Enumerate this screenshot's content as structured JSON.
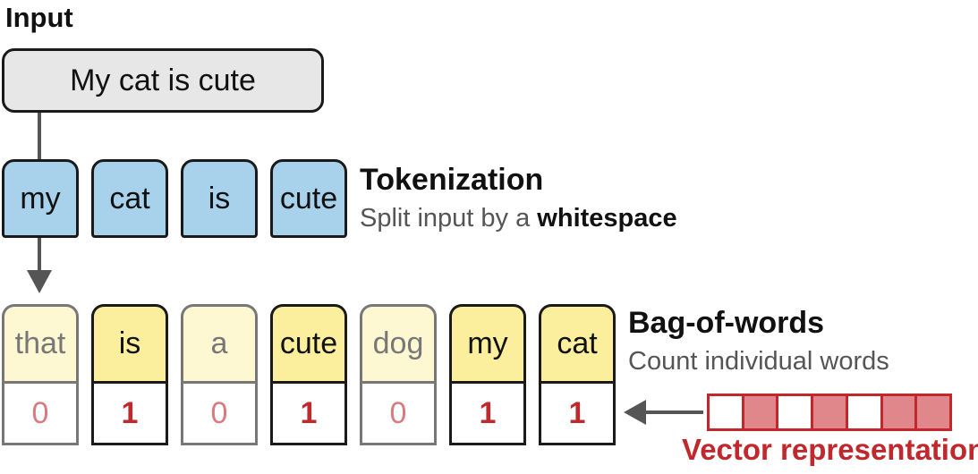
{
  "input": {
    "label": "Input",
    "sentence": "My cat is cute"
  },
  "tokenization": {
    "tokens": [
      "my",
      "cat",
      "is",
      "cute"
    ],
    "title": "Tokenization",
    "description_prefix": "Split input by a ",
    "description_emphasis": "whitespace"
  },
  "bag_of_words": {
    "title": "Bag-of-words",
    "description": "Count individual words",
    "vocabulary": [
      {
        "word": "that",
        "count": "0",
        "present": false
      },
      {
        "word": "is",
        "count": "1",
        "present": true
      },
      {
        "word": "a",
        "count": "0",
        "present": false
      },
      {
        "word": "cute",
        "count": "1",
        "present": true
      },
      {
        "word": "dog",
        "count": "0",
        "present": false
      },
      {
        "word": "my",
        "count": "1",
        "present": true
      },
      {
        "word": "cat",
        "count": "1",
        "present": true
      }
    ]
  },
  "vector": {
    "label": "Vector representation",
    "cells": [
      false,
      true,
      false,
      true,
      false,
      true,
      true
    ]
  },
  "colors": {
    "token_fill": "#a8d1ec",
    "present_fill": "#fbef9e",
    "absent_fill": "#fdf7d2",
    "accent_red": "#c0282d",
    "vector_fill": "#e0878b"
  }
}
